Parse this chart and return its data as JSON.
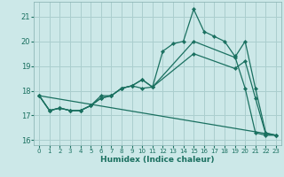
{
  "xlabel": "Humidex (Indice chaleur)",
  "bg_color": "#cce8e8",
  "grid_color": "#aacece",
  "line_color": "#1a7060",
  "xlim": [
    -0.5,
    23.5
  ],
  "ylim": [
    15.8,
    21.6
  ],
  "yticks": [
    16,
    17,
    18,
    19,
    20,
    21
  ],
  "xticks": [
    0,
    1,
    2,
    3,
    4,
    5,
    6,
    7,
    8,
    9,
    10,
    11,
    12,
    13,
    14,
    15,
    16,
    17,
    18,
    19,
    20,
    21,
    22,
    23
  ],
  "series": [
    {
      "x": [
        0,
        1,
        2,
        3,
        4,
        5,
        6,
        7,
        8,
        9,
        10,
        11,
        12,
        13,
        14,
        15,
        16,
        17,
        18,
        19,
        20,
        21,
        22,
        23
      ],
      "y": [
        17.8,
        17.2,
        17.3,
        17.2,
        17.2,
        17.4,
        17.8,
        17.8,
        18.1,
        18.2,
        18.1,
        18.15,
        19.6,
        19.9,
        20.0,
        21.3,
        20.4,
        20.2,
        20.0,
        19.4,
        18.1,
        16.3,
        16.2,
        16.2
      ],
      "has_markers": true
    },
    {
      "x": [
        0,
        1,
        2,
        3,
        4,
        5,
        6,
        7,
        8,
        9,
        10,
        11,
        15,
        19,
        20,
        21,
        22,
        23
      ],
      "y": [
        17.8,
        17.2,
        17.3,
        17.2,
        17.2,
        17.4,
        17.7,
        17.8,
        18.1,
        18.2,
        18.45,
        18.15,
        20.0,
        19.35,
        20.0,
        18.1,
        16.3,
        16.2
      ],
      "has_markers": true
    },
    {
      "x": [
        0,
        1,
        2,
        3,
        4,
        5,
        6,
        7,
        8,
        9,
        10,
        11,
        15,
        19,
        20,
        21,
        22,
        23
      ],
      "y": [
        17.8,
        17.2,
        17.3,
        17.2,
        17.2,
        17.4,
        17.7,
        17.8,
        18.1,
        18.2,
        18.45,
        18.15,
        19.5,
        18.9,
        19.2,
        17.7,
        16.25,
        16.2
      ],
      "has_markers": true
    },
    {
      "x": [
        0,
        23
      ],
      "y": [
        17.8,
        16.2
      ],
      "has_markers": false
    }
  ]
}
